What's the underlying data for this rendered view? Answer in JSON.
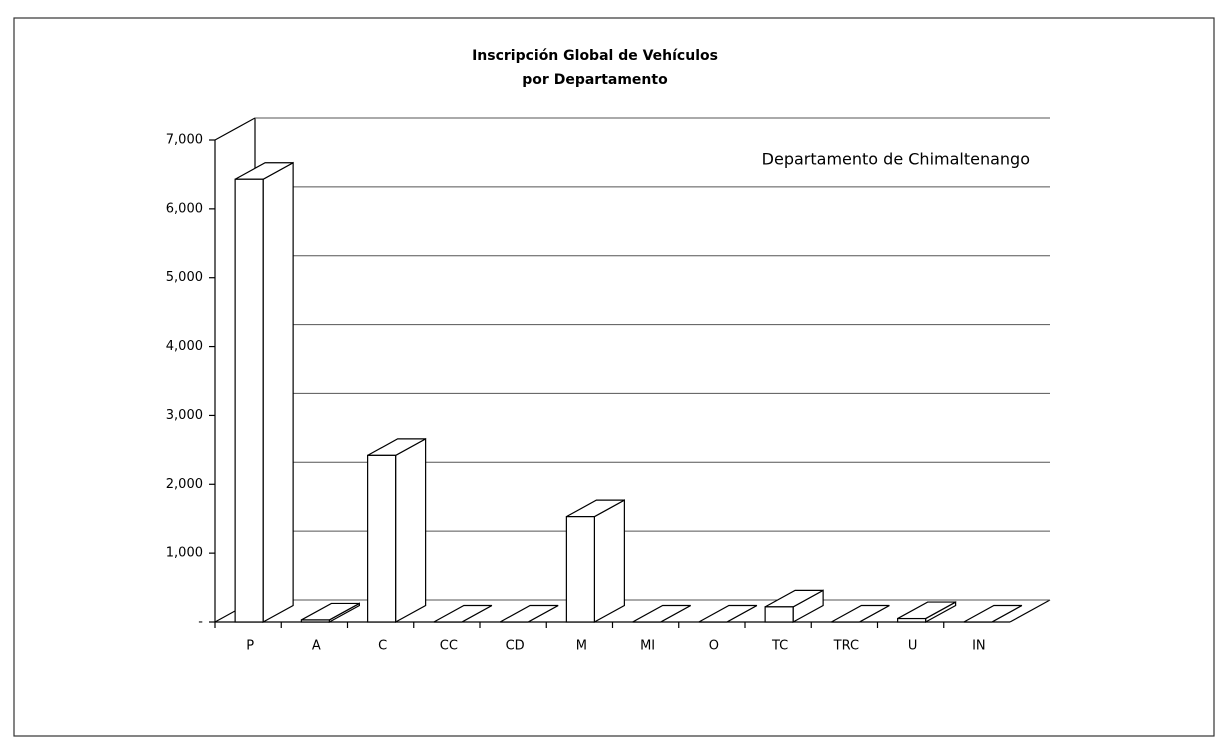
{
  "chart_data": {
    "type": "bar3d",
    "title": "Inscripción Global de Vehículos",
    "subtitle": "por Departamento",
    "annotation": "Departamento de Chimaltenango",
    "categories": [
      "P",
      "A",
      "C",
      "CC",
      "CD",
      "M",
      "MI",
      "O",
      "TC",
      "TRC",
      "U",
      "IN"
    ],
    "values": [
      6430,
      30,
      2420,
      0,
      0,
      1530,
      0,
      0,
      220,
      0,
      50,
      0
    ],
    "color": "#ffffff",
    "ylim": [
      0,
      7000
    ],
    "yticks": [
      {
        "value": 0,
        "label": "-"
      },
      {
        "value": 1000,
        "label": "1,000"
      },
      {
        "value": 2000,
        "label": "2,000"
      },
      {
        "value": 3000,
        "label": "3,000"
      },
      {
        "value": 4000,
        "label": "4,000"
      },
      {
        "value": 5000,
        "label": "5,000"
      },
      {
        "value": 6000,
        "label": "6,000"
      },
      {
        "value": 7000,
        "label": "7,000"
      }
    ],
    "grid": true
  }
}
